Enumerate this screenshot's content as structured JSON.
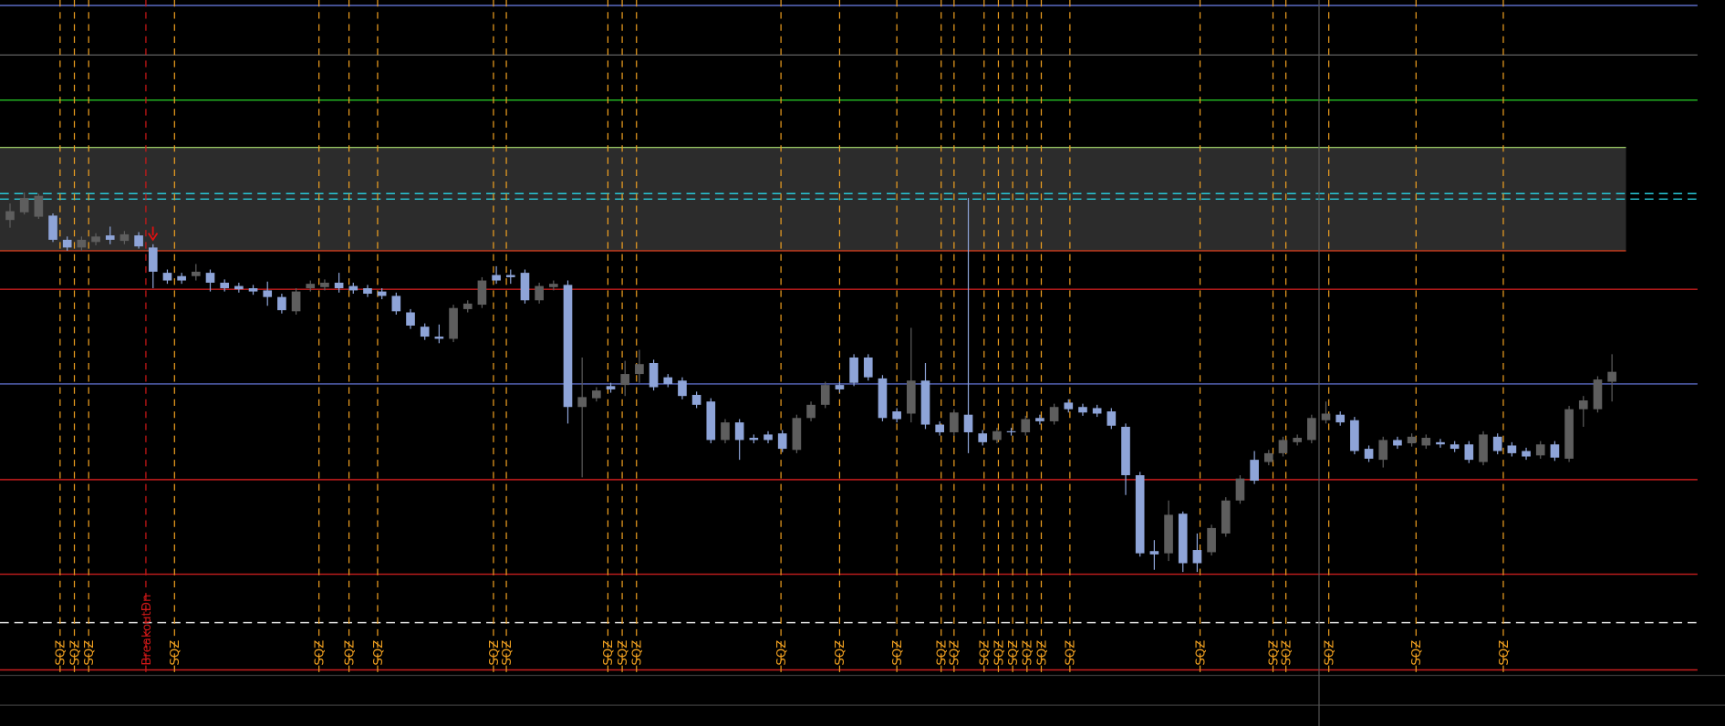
{
  "chart_data": {
    "type": "candlestick",
    "ylim": [
      0,
      660
    ],
    "xlim": [
      -0.7,
      119.9
    ],
    "up_color": "#5e5e5e",
    "down_color": "#8ea4d8",
    "open": [
      460,
      467,
      463,
      464,
      442,
      435,
      440,
      446,
      441,
      446,
      435,
      412,
      409,
      409,
      412,
      403,
      400,
      398,
      396,
      390,
      377,
      398,
      399,
      403,
      400,
      398,
      395,
      391,
      376,
      363,
      354,
      352,
      379,
      383,
      410,
      410,
      412,
      387,
      399,
      401,
      290,
      298,
      309,
      310,
      320,
      330,
      317,
      314,
      301,
      295,
      260,
      276,
      262,
      265,
      266,
      251,
      280,
      292,
      310,
      335,
      335,
      316,
      286,
      284,
      314,
      274,
      267,
      283,
      266,
      260,
      268,
      267,
      280,
      277,
      294,
      290,
      289,
      286,
      272,
      228,
      159,
      157,
      193,
      160,
      158,
      175,
      205,
      242,
      240,
      248,
      258,
      260,
      278,
      283,
      278,
      252,
      242,
      260,
      257,
      255,
      258,
      256,
      256,
      240,
      263,
      255,
      250,
      246,
      256,
      243,
      288,
      288,
      313
    ],
    "high": [
      475,
      485,
      484,
      466,
      445,
      445,
      448,
      454,
      450,
      449,
      438,
      415,
      412,
      420,
      415,
      406,
      403,
      401,
      404,
      393,
      398,
      405,
      406,
      412,
      403,
      401,
      398,
      394,
      379,
      366,
      365,
      383,
      387,
      408,
      418,
      415,
      415,
      403,
      405,
      405,
      335,
      308,
      312,
      332,
      342,
      333,
      320,
      317,
      304,
      298,
      279,
      279,
      265,
      268,
      269,
      283,
      295,
      313,
      313,
      338,
      338,
      319,
      289,
      362,
      330,
      277,
      288,
      480,
      269,
      271,
      271,
      282,
      283,
      293,
      297,
      293,
      292,
      289,
      275,
      231,
      169,
      205,
      195,
      175,
      183,
      208,
      228,
      250,
      251,
      263,
      265,
      283,
      295,
      286,
      281,
      255,
      263,
      263,
      266,
      265,
      261,
      259,
      259,
      268,
      266,
      258,
      253,
      259,
      259,
      291,
      300,
      318,
      338
    ],
    "low": [
      453,
      465,
      461,
      440,
      432,
      432,
      437,
      438,
      438,
      434,
      398,
      402,
      402,
      405,
      395,
      395,
      394,
      392,
      382,
      375,
      374,
      395,
      396,
      394,
      393,
      390,
      388,
      374,
      361,
      351,
      348,
      349,
      376,
      380,
      402,
      402,
      384,
      384,
      396,
      275,
      226,
      295,
      303,
      300,
      312,
      305,
      308,
      297,
      289,
      257,
      257,
      242,
      257,
      257,
      249,
      248,
      277,
      289,
      303,
      309,
      314,
      277,
      276,
      276,
      270,
      264,
      264,
      248,
      255,
      257,
      264,
      264,
      274,
      274,
      285,
      282,
      281,
      270,
      210,
      154,
      142,
      150,
      140,
      140,
      155,
      172,
      202,
      220,
      237,
      245,
      255,
      257,
      275,
      273,
      247,
      240,
      235,
      252,
      254,
      252,
      253,
      249,
      239,
      237,
      247,
      245,
      242,
      243,
      241,
      240,
      272,
      285,
      295
    ],
    "close": [
      468,
      480,
      482,
      442,
      435,
      442,
      445,
      442,
      447,
      436,
      413,
      405,
      405,
      413,
      403,
      398,
      397,
      395,
      390,
      378,
      395,
      402,
      403,
      398,
      396,
      393,
      391,
      377,
      364,
      354,
      352,
      380,
      384,
      405,
      405,
      408,
      387,
      400,
      402,
      290,
      299,
      305,
      306,
      320,
      329,
      308,
      311,
      300,
      292,
      260,
      276,
      260,
      260,
      260,
      252,
      280,
      292,
      310,
      306,
      312,
      317,
      280,
      279,
      314,
      274,
      267,
      285,
      267,
      258,
      268,
      267,
      279,
      277,
      290,
      288,
      285,
      284,
      273,
      228,
      157,
      156,
      192,
      148,
      148,
      180,
      205,
      225,
      223,
      248,
      260,
      262,
      280,
      284,
      276,
      250,
      243,
      260,
      255,
      263,
      262,
      256,
      252,
      242,
      265,
      250,
      248,
      245,
      256,
      244,
      288,
      296,
      315,
      322
    ],
    "levels": [
      {
        "value": 655,
        "color": "#5b6bc4",
        "dash": false
      },
      {
        "value": 610,
        "color": "#5a5a5a",
        "dash": false
      },
      {
        "value": 569,
        "color": "#22b022",
        "dash": false
      },
      {
        "value": 484,
        "color": "#28c8d8",
        "dash": true
      },
      {
        "value": 479,
        "color": "#28c8d8",
        "dash": true
      },
      {
        "value": 397,
        "color": "#c81e1e",
        "dash": false
      },
      {
        "value": 311,
        "color": "#5b6bc4",
        "dash": false
      },
      {
        "value": 224,
        "color": "#c81e1e",
        "dash": false
      },
      {
        "value": 138,
        "color": "#c81e1e",
        "dash": false
      },
      {
        "value": 94,
        "color": "#e0e0e0",
        "dash": true
      },
      {
        "value": 51,
        "color": "#c81e1e",
        "dash": false
      }
    ],
    "zone": {
      "low": 432,
      "high": 526,
      "color": "#2c2c2c",
      "top_color": "#9ccc65",
      "bottom_color": "#e0401e"
    },
    "signals": [
      {
        "x": 3.5,
        "label": "SQZ"
      },
      {
        "x": 4.5,
        "label": "SQZ"
      },
      {
        "x": 5.5,
        "label": "SQZ"
      },
      {
        "x": 9.5,
        "label": "BreakoutDn"
      },
      {
        "x": 11.5,
        "label": "SQZ"
      },
      {
        "x": 21.6,
        "label": "SQZ"
      },
      {
        "x": 23.7,
        "label": "SQZ"
      },
      {
        "x": 25.7,
        "label": "SQZ"
      },
      {
        "x": 33.8,
        "label": "SQZ"
      },
      {
        "x": 34.7,
        "label": "SQZ"
      },
      {
        "x": 41.8,
        "label": "SQZ"
      },
      {
        "x": 42.8,
        "label": "SQZ"
      },
      {
        "x": 43.8,
        "label": "SQZ"
      },
      {
        "x": 53.9,
        "label": "SQZ"
      },
      {
        "x": 58,
        "label": "SQZ"
      },
      {
        "x": 62,
        "label": "SQZ"
      },
      {
        "x": 65.1,
        "label": "SQZ"
      },
      {
        "x": 66,
        "label": "SQZ"
      },
      {
        "x": 68.1,
        "label": "SQZ"
      },
      {
        "x": 69.1,
        "label": "SQZ"
      },
      {
        "x": 70.1,
        "label": "SQZ"
      },
      {
        "x": 71.1,
        "label": "SQZ"
      },
      {
        "x": 72.1,
        "label": "SQZ"
      },
      {
        "x": 74.1,
        "label": "SQZ"
      },
      {
        "x": 83.2,
        "label": "SQZ"
      },
      {
        "x": 88.3,
        "label": "SQZ"
      },
      {
        "x": 89.2,
        "label": "SQZ"
      },
      {
        "x": 92.2,
        "label": "SQZ"
      },
      {
        "x": 98.3,
        "label": "SQZ"
      },
      {
        "x": 104.4,
        "label": "SQZ"
      }
    ],
    "signal_color": "#f0a020",
    "breakout_color": "#d01818"
  }
}
